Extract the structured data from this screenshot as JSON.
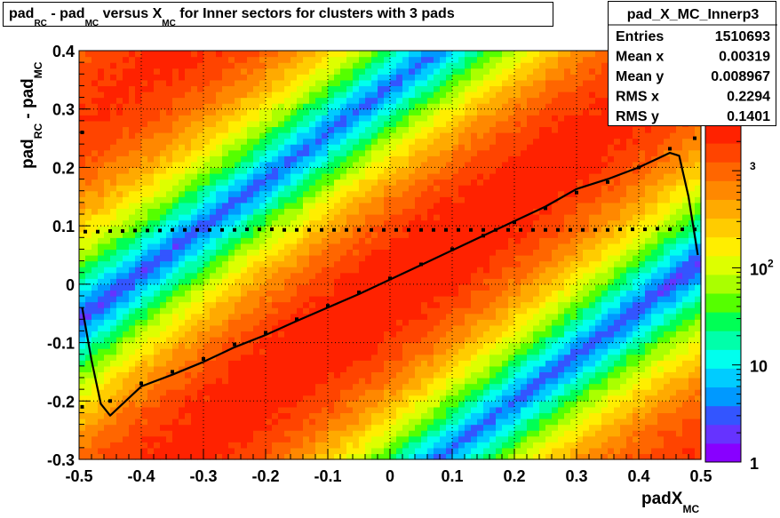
{
  "chart_data": {
    "type": "heatmap",
    "title": {
      "p1": "pad",
      "s1": "RC",
      "p2": " - pad",
      "s2": "MC",
      "p3": " versus X",
      "s3": "MC",
      "p4": " for Inner sectors for clusters with 3 pads"
    },
    "xlabel": {
      "main": "padX",
      "sub": "MC"
    },
    "ylabel": {
      "p1": "pad",
      "s1": "RC",
      "p2": " - pad",
      "s2": "MC"
    },
    "xlim": [
      -0.5,
      0.5
    ],
    "ylim": [
      -0.3,
      0.4
    ],
    "x_ticks": [
      {
        "v": -0.5,
        "label": "-0.5"
      },
      {
        "v": -0.4,
        "label": "-0.4"
      },
      {
        "v": -0.3,
        "label": "-0.3"
      },
      {
        "v": -0.2,
        "label": "-0.2"
      },
      {
        "v": -0.1,
        "label": "-0.1"
      },
      {
        "v": 0,
        "label": "0"
      },
      {
        "v": 0.1,
        "label": "0.1"
      },
      {
        "v": 0.2,
        "label": "0.2"
      },
      {
        "v": 0.3,
        "label": "0.3"
      },
      {
        "v": 0.4,
        "label": "0.4"
      },
      {
        "v": 0.5,
        "label": "0.5"
      }
    ],
    "y_ticks": [
      {
        "v": -0.3,
        "label": "-0.3"
      },
      {
        "v": -0.2,
        "label": "-0.2"
      },
      {
        "v": -0.1,
        "label": "-0.1"
      },
      {
        "v": 0,
        "label": "0"
      },
      {
        "v": 0.1,
        "label": "0.1"
      },
      {
        "v": 0.2,
        "label": "0.2"
      },
      {
        "v": 0.3,
        "label": "0.3"
      },
      {
        "v": 0.4,
        "label": "0.4"
      }
    ],
    "grid": true,
    "colorbar": {
      "scale": "log",
      "range": [
        1,
        3000
      ],
      "ticks": [
        {
          "v": 1,
          "base": "1",
          "exp": ""
        },
        {
          "v": 10,
          "base": "10",
          "exp": ""
        },
        {
          "v": 100,
          "base": "10",
          "exp": "2"
        },
        {
          "v": 1000,
          "base": "",
          "exp": "3"
        }
      ],
      "colors": [
        "#8800ff",
        "#6633ff",
        "#3355ff",
        "#0099ff",
        "#00ccff",
        "#00ffee",
        "#00ffaa",
        "#00ff55",
        "#55ff00",
        "#aaff00",
        "#ddff00",
        "#ffee00",
        "#ffcc00",
        "#ffaa00",
        "#ff8800",
        "#ff6600",
        "#ff4400",
        "#ff2200"
      ]
    },
    "density_model": {
      "band_slope": 0.8,
      "band_center_offset": -0.01,
      "band_sigma": 0.095,
      "peak": 2800,
      "wrap_period": 0.7
    },
    "profile_curve": {
      "name": "profile",
      "x": [
        -0.495,
        -0.48,
        -0.465,
        -0.45,
        -0.43,
        -0.4,
        -0.35,
        -0.3,
        -0.25,
        -0.2,
        -0.15,
        -0.1,
        -0.05,
        0.0,
        0.05,
        0.1,
        0.15,
        0.2,
        0.25,
        0.3,
        0.35,
        0.4,
        0.43,
        0.45,
        0.465,
        0.48,
        0.495
      ],
      "y": [
        -0.04,
        -0.13,
        -0.205,
        -0.225,
        -0.205,
        -0.175,
        -0.155,
        -0.133,
        -0.108,
        -0.087,
        -0.063,
        -0.04,
        -0.017,
        0.008,
        0.033,
        0.058,
        0.083,
        0.108,
        0.133,
        0.163,
        0.18,
        0.2,
        0.215,
        0.225,
        0.22,
        0.15,
        0.05
      ]
    },
    "linear_fit_points": {
      "x": [
        -0.495,
        -0.45,
        -0.4,
        -0.35,
        -0.3,
        -0.25,
        -0.2,
        -0.15,
        -0.1,
        -0.05,
        0.0,
        0.05,
        0.1,
        0.15,
        0.2,
        0.25,
        0.3,
        0.35,
        0.4,
        0.45,
        0.49
      ],
      "y": [
        -0.21,
        -0.2,
        -0.17,
        -0.15,
        -0.128,
        -0.103,
        -0.083,
        -0.06,
        -0.037,
        -0.014,
        0.01,
        0.034,
        0.06,
        0.083,
        0.106,
        0.13,
        0.157,
        0.175,
        0.2,
        0.232,
        0.25
      ]
    },
    "flat_points": {
      "x": [
        -0.49,
        -0.47,
        -0.45,
        -0.43,
        -0.41,
        -0.39,
        -0.37,
        -0.35,
        -0.33,
        -0.31,
        -0.29,
        -0.27,
        -0.25,
        -0.23,
        -0.21,
        -0.19,
        -0.17,
        -0.15,
        -0.13,
        -0.11,
        -0.09,
        -0.07,
        -0.05,
        -0.03,
        -0.01,
        0.01,
        0.03,
        0.05,
        0.07,
        0.09,
        0.11,
        0.13,
        0.15,
        0.17,
        0.19,
        0.21,
        0.23,
        0.25,
        0.27,
        0.29,
        0.31,
        0.33,
        0.35,
        0.37,
        0.39,
        0.41,
        0.43,
        0.45,
        0.47,
        0.49
      ],
      "y": [
        0.09,
        0.09,
        0.091,
        0.091,
        0.092,
        0.092,
        0.092,
        0.093,
        0.093,
        0.093,
        0.093,
        0.093,
        0.093,
        0.094,
        0.094,
        0.094,
        0.093,
        0.093,
        0.093,
        0.093,
        0.093,
        0.093,
        0.093,
        0.093,
        0.093,
        0.093,
        0.093,
        0.093,
        0.093,
        0.093,
        0.093,
        0.093,
        0.093,
        0.093,
        0.093,
        0.093,
        0.093,
        0.093,
        0.093,
        0.093,
        0.093,
        0.093,
        0.093,
        0.094,
        0.094,
        0.094,
        0.095,
        0.094,
        0.094,
        0.094
      ]
    },
    "outlier_point": {
      "x": -0.495,
      "y": 0.26
    }
  },
  "stats": {
    "name": "pad_X_MC_Innerp3",
    "rows": [
      {
        "label": "Entries",
        "value": "1510693"
      },
      {
        "label": "Mean x",
        "value": "0.00319"
      },
      {
        "label": "Mean y",
        "value": "0.008967"
      },
      {
        "label": "RMS x",
        "value": "0.2294"
      },
      {
        "label": "RMS y",
        "value": "0.1401"
      }
    ]
  }
}
